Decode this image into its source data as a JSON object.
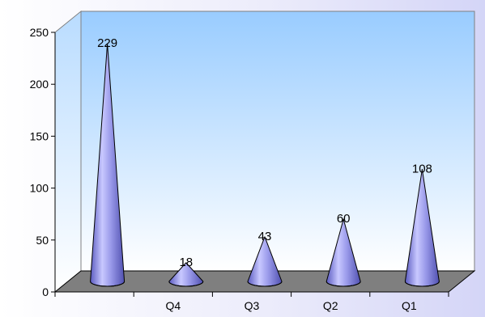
{
  "chart_data": {
    "type": "bar",
    "categories": [
      "",
      "Q4",
      "Q3",
      "Q2",
      "Q1"
    ],
    "values": [
      229,
      18,
      43,
      60,
      108
    ],
    "ylim": [
      0,
      250
    ],
    "yticks": [
      0,
      50,
      100,
      150,
      200,
      250
    ],
    "grid": false,
    "legend": "none",
    "shape": "cone",
    "colors": {
      "outer_background": "#d4d5f7",
      "wall_top": "#99ccff",
      "wall_bottom": "#ffffff",
      "floor": "#7f7f7f",
      "cone": "#8f8fe6",
      "cone_dark": "#5555b8",
      "cone_light": "#d8d8ff"
    }
  }
}
